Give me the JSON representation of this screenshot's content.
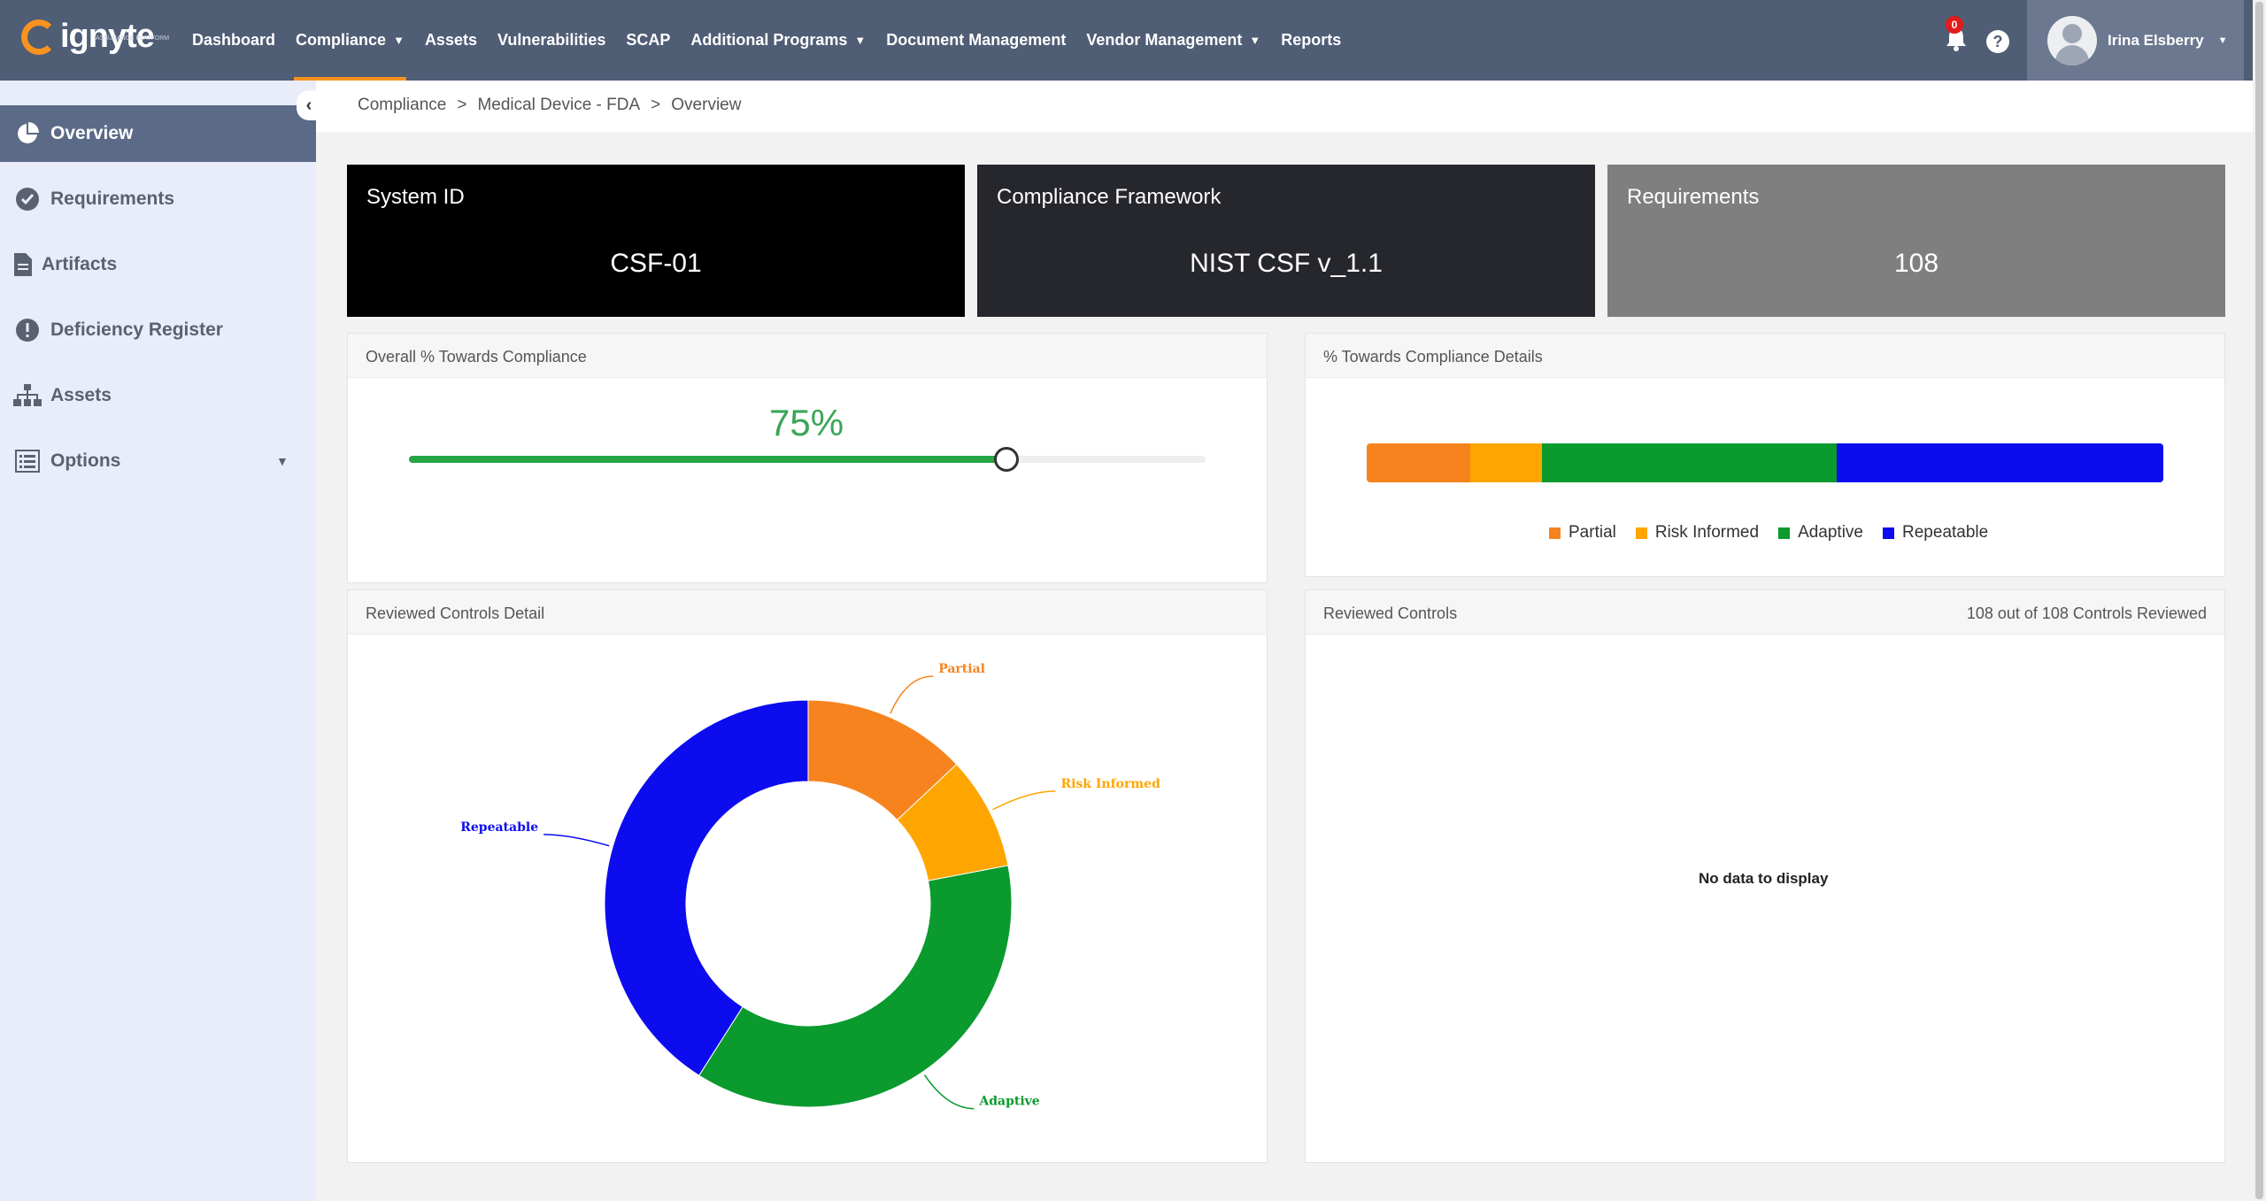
{
  "brand": {
    "name": "ignyte",
    "tagline": "ASSURANCE PLATFORM"
  },
  "nav": {
    "items": [
      {
        "label": "Dashboard",
        "dropdown": false,
        "active": false
      },
      {
        "label": "Compliance",
        "dropdown": true,
        "active": true
      },
      {
        "label": "Assets",
        "dropdown": false,
        "active": false
      },
      {
        "label": "Vulnerabilities",
        "dropdown": false,
        "active": false
      },
      {
        "label": "SCAP",
        "dropdown": false,
        "active": false
      },
      {
        "label": "Additional Programs",
        "dropdown": true,
        "active": false
      },
      {
        "label": "Document Management",
        "dropdown": false,
        "active": false
      },
      {
        "label": "Vendor Management",
        "dropdown": true,
        "active": false
      },
      {
        "label": "Reports",
        "dropdown": false,
        "active": false
      }
    ],
    "notification_count": "0",
    "help_label": "?",
    "user_name": "Irina Elsberry"
  },
  "sidebar": {
    "items": [
      {
        "label": "Overview",
        "icon": "pie-chart-icon",
        "active": true
      },
      {
        "label": "Requirements",
        "icon": "check-circle-icon",
        "active": false
      },
      {
        "label": "Artifacts",
        "icon": "document-icon",
        "active": false
      },
      {
        "label": "Deficiency Register",
        "icon": "exclamation-circle-icon",
        "active": false
      },
      {
        "label": "Assets",
        "icon": "sitemap-icon",
        "active": false
      },
      {
        "label": "Options",
        "icon": "list-icon",
        "active": false
      }
    ]
  },
  "breadcrumb": [
    "Compliance",
    "Medical Device - FDA",
    "Overview"
  ],
  "tiles": [
    {
      "title": "System ID",
      "value": "CSF-01",
      "color": "#000000"
    },
    {
      "title": "Compliance Framework",
      "value": "NIST CSF v_1.1",
      "color": "#26272d"
    },
    {
      "title": "Requirements",
      "value": "108",
      "color": "#7f7f7f"
    }
  ],
  "overall_panel": {
    "title": "Overall % Towards Compliance",
    "percent_label": "75%",
    "percent": 75
  },
  "details_panel": {
    "title": "% Towards Compliance Details",
    "legend": [
      "Partial",
      "Risk Informed",
      "Adaptive",
      "Repeatable"
    ]
  },
  "reviewed_detail_panel": {
    "title": "Reviewed Controls Detail"
  },
  "reviewed_panel": {
    "title": "Reviewed Controls",
    "summary": "108 out of 108 Controls Reviewed",
    "empty_text": "No data to display"
  },
  "colors": {
    "Partial": "#f7831e",
    "Risk Informed": "#ffa500",
    "Adaptive": "#0a9a2e",
    "Repeatable": "#0c0cef"
  },
  "chart_data": [
    {
      "type": "bar",
      "stacked": true,
      "orientation": "horizontal",
      "categories": [
        "Partial",
        "Risk Informed",
        "Adaptive",
        "Repeatable"
      ],
      "values": [
        13,
        9,
        37,
        41
      ],
      "unit": "%"
    },
    {
      "type": "pie",
      "donut": true,
      "categories": [
        "Partial",
        "Risk Informed",
        "Adaptive",
        "Repeatable"
      ],
      "values": [
        13,
        9,
        37,
        41
      ],
      "unit": "%"
    }
  ]
}
